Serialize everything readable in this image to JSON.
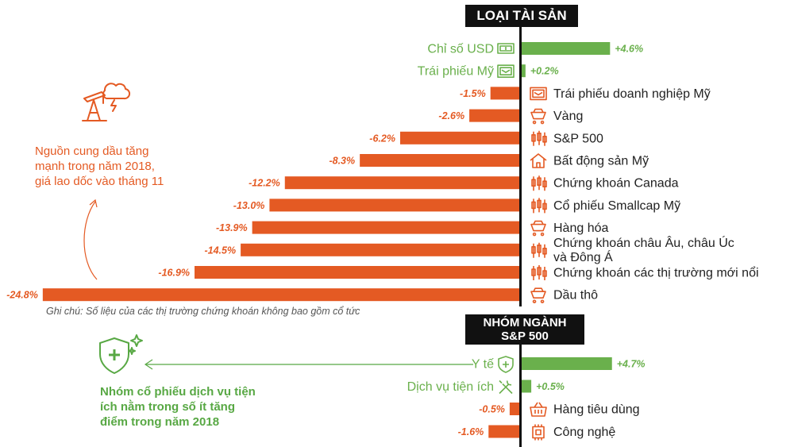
{
  "chart_data": [
    {
      "type": "bar",
      "title": "LOẠI TÀI SẢN",
      "categories": [
        "Chỉ số USD",
        "Trái phiếu Mỹ",
        "Trái phiếu doanh nghiệp Mỹ",
        "Vàng",
        "S&P 500",
        "Bất động sản Mỹ",
        "Chứng khoán Canada",
        "Cổ phiếu Smallcap Mỹ",
        "Hàng hóa",
        "Chứng khoán châu Âu, châu Úc và Đông Á",
        "Chứng khoán các thị trường mới nổi",
        "Dầu thô"
      ],
      "category_lines": [
        [
          "Chỉ số USD"
        ],
        [
          "Trái phiếu Mỹ"
        ],
        [
          "Trái phiếu doanh nghiệp Mỹ"
        ],
        [
          "Vàng"
        ],
        [
          "S&P 500"
        ],
        [
          "Bất động sản Mỹ"
        ],
        [
          "Chứng khoán Canada"
        ],
        [
          "Cổ phiếu Smallcap Mỹ"
        ],
        [
          "Hàng hóa"
        ],
        [
          "Chứng khoán châu Âu, châu Úc",
          "và Đông Á"
        ],
        [
          "Chứng khoán các thị trường mới nổi"
        ],
        [
          "Dầu thô"
        ]
      ],
      "values": [
        4.6,
        0.2,
        -1.5,
        -2.6,
        -6.2,
        -8.3,
        -12.2,
        -13.0,
        -13.9,
        -14.5,
        -16.9,
        -24.8
      ],
      "value_labels": [
        "+4.6%",
        "+0.2%",
        "-1.5%",
        "-2.6%",
        "-6.2%",
        "-8.3%",
        "-12.2%",
        "-13.0%",
        "-13.9%",
        "-14.5%",
        "-16.9%",
        "-24.8%"
      ],
      "icons": [
        "cash-icon",
        "bond-icon",
        "bond-icon",
        "gold-cart-icon",
        "candlestick-icon",
        "house-icon",
        "candlestick-icon",
        "candlestick-icon",
        "gold-cart-icon",
        "candlestick-icon",
        "candlestick-icon",
        "gold-cart-icon"
      ],
      "unit": "%",
      "positive_color": "#6ab04c",
      "negative_color": "#e45a23"
    },
    {
      "type": "bar",
      "title_lines": [
        "NHÓM NGÀNH",
        "S&P 500"
      ],
      "categories": [
        "Y tế",
        "Dịch vụ tiện ích",
        "Hàng tiêu dùng",
        "Công nghệ"
      ],
      "values": [
        4.7,
        0.5,
        -0.5,
        -1.6
      ],
      "value_labels": [
        "+4.7%",
        "+0.5%",
        "-0.5%",
        "-1.6%"
      ],
      "icons": [
        "health-shield-icon",
        "tools-icon",
        "basket-icon",
        "chip-icon"
      ],
      "unit": "%",
      "positive_color": "#6ab04c",
      "negative_color": "#e45a23"
    }
  ],
  "notes": {
    "footnote": "Ghi chú: Số liệu của các thị trường chứng khoán không bao gồm cổ tức"
  },
  "callouts": {
    "oil_lines": [
      "Nguồn cung dầu tăng",
      "mạnh trong năm 2018,",
      "giá lao dốc vào tháng 11"
    ],
    "utilities_lines": [
      "Nhóm cổ phiếu dịch vụ tiện",
      "ích nằm trong số ít tăng",
      "điểm trong năm 2018"
    ]
  }
}
